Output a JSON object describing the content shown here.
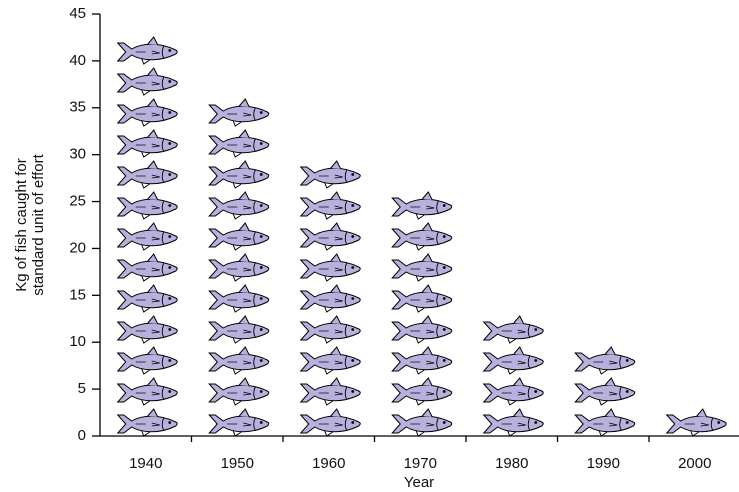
{
  "chart_data": {
    "type": "pictograph",
    "y_label": [
      "Kg of fish caught for",
      "standard unit of effort"
    ],
    "x_label": "Year",
    "categories": [
      "1940",
      "1950",
      "1960",
      "1970",
      "1980",
      "1990",
      "2000"
    ],
    "values": [
      42,
      36,
      29,
      26,
      13,
      10,
      3
    ],
    "color": "#b9b1dd",
    "ylim": [
      0,
      45
    ],
    "yticks": [
      0,
      5,
      10,
      15,
      20,
      25,
      30,
      35,
      40,
      45
    ]
  }
}
